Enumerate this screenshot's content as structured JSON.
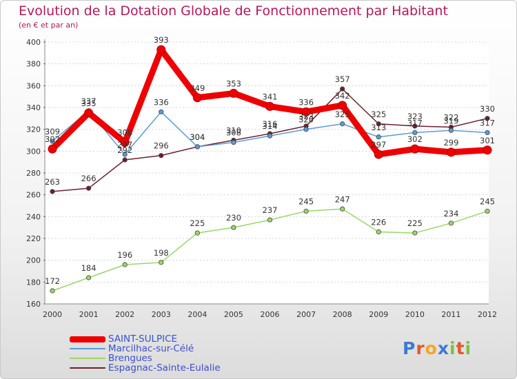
{
  "chart_data": {
    "type": "line",
    "title": "Evolution de la Dotation Globale de Fonctionnement par Habitant",
    "subtitle": "(en € et par an)",
    "xlabel": "",
    "ylabel": "",
    "categories": [
      "2000",
      "2001",
      "2002",
      "2003",
      "2004",
      "2005",
      "2006",
      "2007",
      "2008",
      "2009",
      "2010",
      "2011",
      "2012"
    ],
    "ylim": [
      160,
      400
    ],
    "yticks": [
      160,
      180,
      200,
      220,
      240,
      260,
      280,
      300,
      320,
      340,
      360,
      380,
      400
    ],
    "grid": "horizontal-dashed",
    "series": [
      {
        "name": "SAINT-SULPICE",
        "color": "#ee0000",
        "values": [
          302,
          335,
          308,
          393,
          349,
          353,
          341,
          336,
          342,
          297,
          302,
          299,
          301
        ]
      },
      {
        "name": "Marcilhac-sur-Célé",
        "color": "#5b9bd5",
        "values": [
          309,
          337,
          297,
          336,
          304,
          308,
          314,
          320,
          325,
          313,
          317,
          319,
          317
        ]
      },
      {
        "name": "Brengues",
        "color": "#9bd56a",
        "values": [
          172,
          184,
          196,
          198,
          225,
          230,
          237,
          245,
          247,
          226,
          225,
          234,
          245
        ]
      },
      {
        "name": "Espagnac-Sainte-Eulalie",
        "color": "#6b1f2a",
        "values": [
          263,
          266,
          292,
          296,
          304,
          310,
          316,
          323,
          357,
          325,
          323,
          322,
          330
        ]
      }
    ]
  },
  "brand": {
    "letters": [
      "P",
      "r",
      "o",
      "x",
      "i",
      "t",
      "i"
    ],
    "colors": [
      "#3c7ad0",
      "#e8542b",
      "#f5a623",
      "#3c7ad0",
      "#7cc142",
      "#e8542b",
      "#7cc142"
    ]
  }
}
